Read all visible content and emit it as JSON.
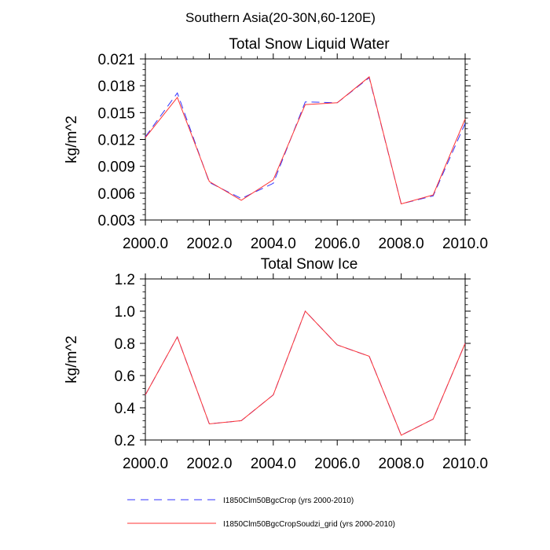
{
  "suptitle": "Southern Asia(20-30N,60-120E)",
  "colors": {
    "dashed_series": "#3333ff",
    "solid_series": "#ff3333",
    "axis": "#000000"
  },
  "legend": {
    "placement": "bottom",
    "entries": [
      {
        "label": "I1850Clm50BgcCrop (yrs 2000-2010)",
        "style": "dashed",
        "color": "#3333ff"
      },
      {
        "label": "I1850Clm50BgcCropSoudzi_grid (yrs 2000-2010)",
        "style": "solid",
        "color": "#ff3333"
      }
    ]
  },
  "chart_data": [
    {
      "type": "line",
      "title": "Total Snow Liquid Water",
      "xlabel": "",
      "ylabel": "kg/m^2",
      "xlim": [
        2000,
        2010
      ],
      "ylim": [
        0.003,
        0.021
      ],
      "xticks": [
        2000,
        2002,
        2004,
        2006,
        2008,
        2010
      ],
      "xtick_labels": [
        "2000.0",
        "2002.0",
        "2004.0",
        "2006.0",
        "2008.0",
        "2010.0"
      ],
      "yticks": [
        0.003,
        0.006,
        0.009,
        0.012,
        0.015,
        0.018,
        0.021
      ],
      "ytick_labels": [
        "0.003",
        "0.006",
        "0.009",
        "0.012",
        "0.015",
        "0.018",
        "0.021"
      ],
      "x": [
        2000,
        2001,
        2002,
        2003,
        2004,
        2005,
        2006,
        2007,
        2008,
        2009,
        2010
      ],
      "series": [
        {
          "name": "I1850Clm50BgcCrop (yrs 2000-2010)",
          "style": "dashed",
          "values": [
            0.0123,
            0.0172,
            0.0072,
            0.0054,
            0.0071,
            0.0162,
            0.0161,
            0.0189,
            0.0048,
            0.0057,
            0.0138
          ]
        },
        {
          "name": "I1850Clm50BgcCropSoudzi_grid (yrs 2000-2010)",
          "style": "solid",
          "values": [
            0.0122,
            0.0167,
            0.0073,
            0.0052,
            0.0075,
            0.0159,
            0.0161,
            0.019,
            0.0048,
            0.0058,
            0.0143
          ]
        }
      ]
    },
    {
      "type": "line",
      "title": "Total Snow Ice",
      "xlabel": "",
      "ylabel": "kg/m^2",
      "xlim": [
        2000,
        2010
      ],
      "ylim": [
        0.2,
        1.2
      ],
      "xticks": [
        2000,
        2002,
        2004,
        2006,
        2008,
        2010
      ],
      "xtick_labels": [
        "2000.0",
        "2002.0",
        "2004.0",
        "2006.0",
        "2008.0",
        "2010.0"
      ],
      "yticks": [
        0.2,
        0.4,
        0.6,
        0.8,
        1.0,
        1.2
      ],
      "ytick_labels": [
        "0.2",
        "0.4",
        "0.6",
        "0.8",
        "1.0",
        "1.2"
      ],
      "x": [
        2000,
        2001,
        2002,
        2003,
        2004,
        2005,
        2006,
        2007,
        2008,
        2009,
        2010
      ],
      "series": [
        {
          "name": "I1850Clm50BgcCrop (yrs 2000-2010)",
          "style": "dashed",
          "values": [
            0.48,
            0.84,
            0.3,
            0.32,
            0.48,
            1.0,
            0.79,
            0.72,
            0.23,
            0.33,
            0.8
          ]
        },
        {
          "name": "I1850Clm50BgcCropSoudzi_grid (yrs 2000-2010)",
          "style": "solid",
          "values": [
            0.48,
            0.84,
            0.3,
            0.32,
            0.48,
            1.0,
            0.79,
            0.72,
            0.23,
            0.33,
            0.8
          ]
        }
      ]
    }
  ]
}
